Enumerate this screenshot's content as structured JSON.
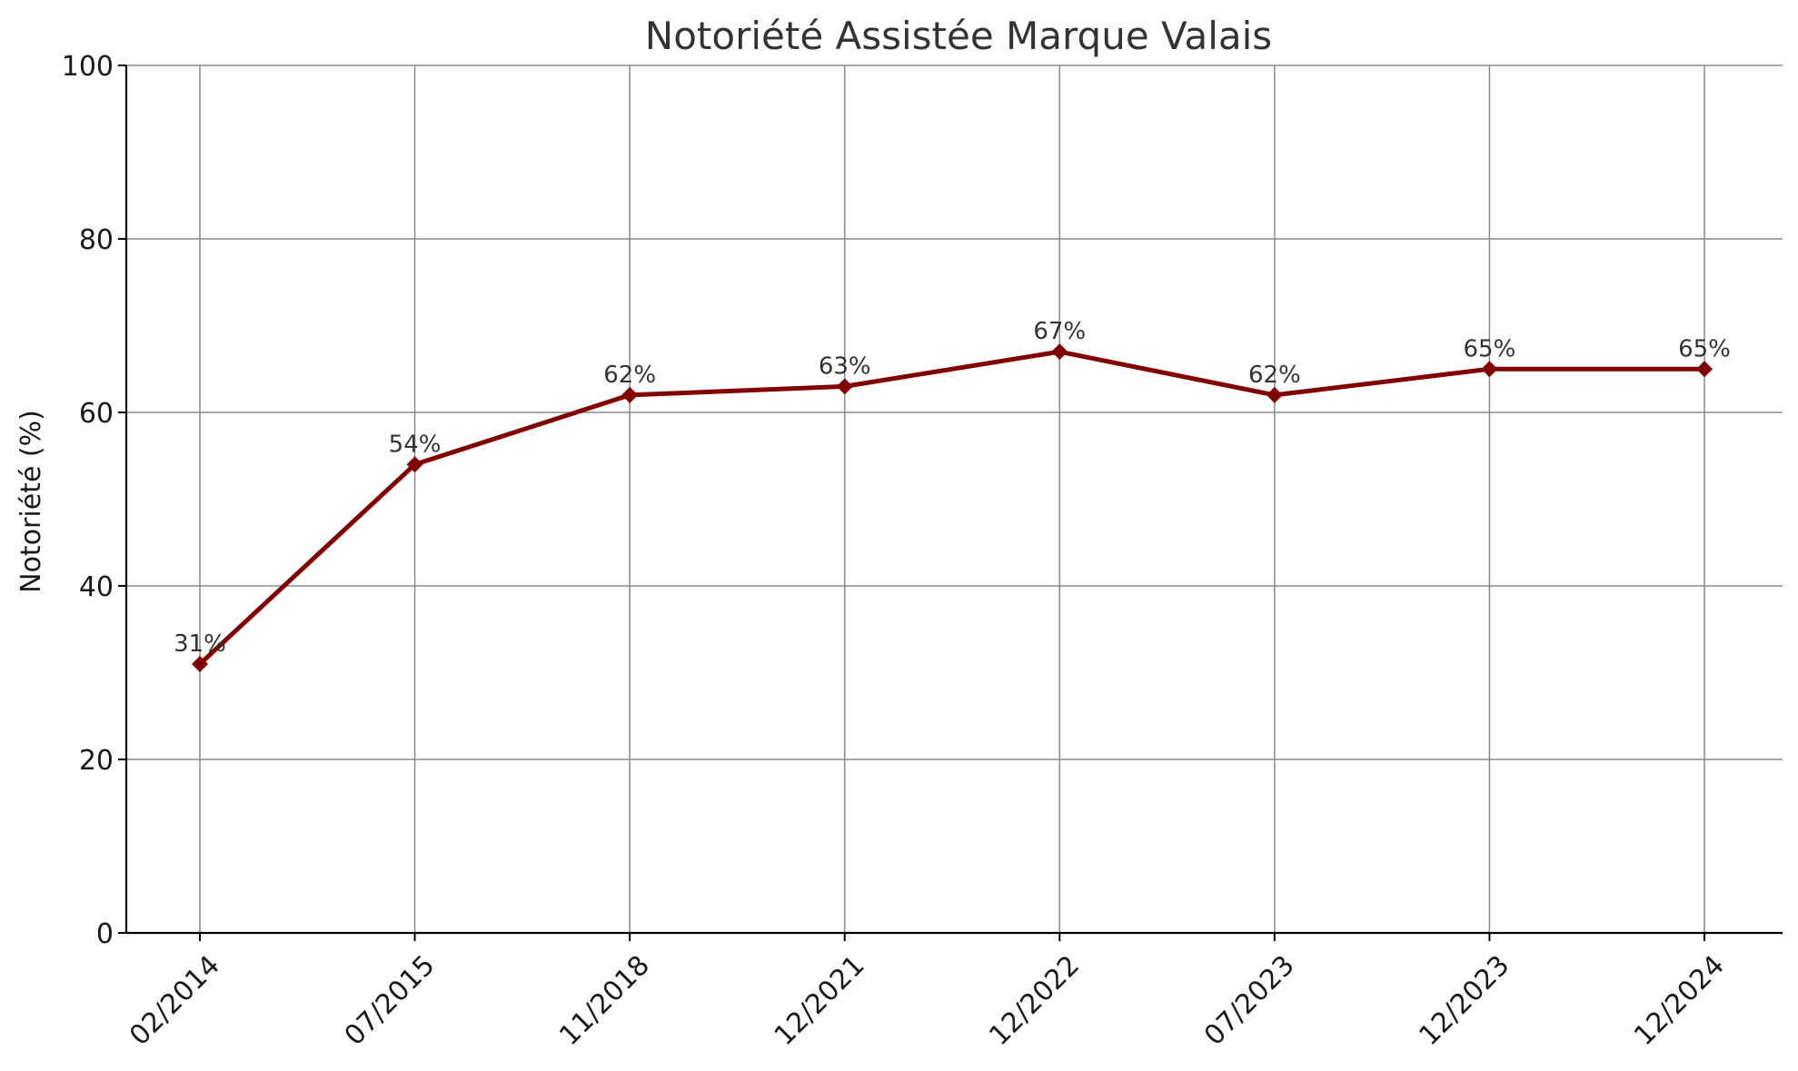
{
  "chart_data": {
    "type": "line",
    "title": "Notoriété Assistée Marque Valais",
    "xlabel": "",
    "ylabel": "Notoriété (%)",
    "categories": [
      "02/2014",
      "07/2015",
      "11/2018",
      "12/2021",
      "12/2022",
      "07/2023",
      "12/2023",
      "12/2024"
    ],
    "series": [
      {
        "values": [
          31,
          54,
          62,
          63,
          67,
          62,
          65,
          65
        ],
        "data_labels": [
          "31%",
          "54%",
          "62%",
          "63%",
          "67%",
          "62%",
          "65%",
          "65%"
        ],
        "color": "#800000",
        "marker": "diamond"
      }
    ],
    "ylim": [
      0,
      100
    ],
    "yticks": [
      0,
      20,
      40,
      60,
      80,
      100
    ],
    "grid": true,
    "legend": "none"
  }
}
